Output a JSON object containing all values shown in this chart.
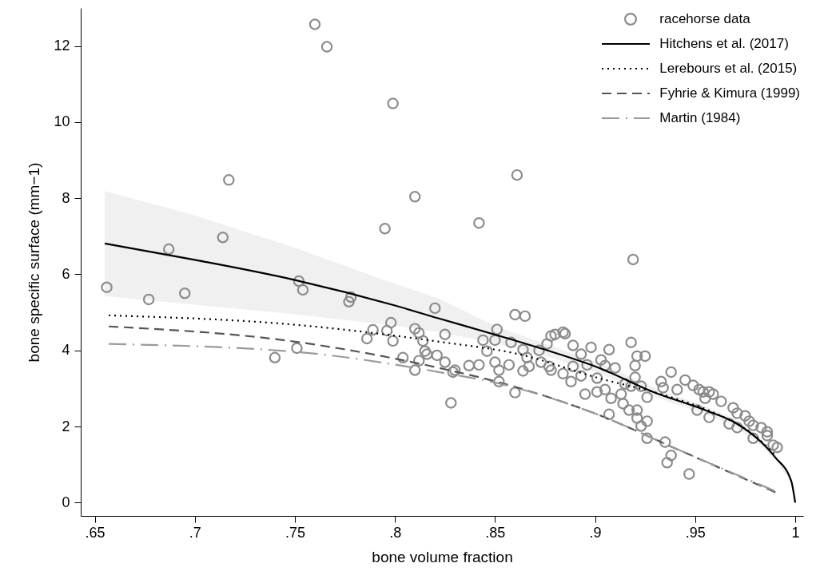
{
  "chart_data": {
    "type": "scatter",
    "xlabel": "bone volume fraction",
    "ylabel": "bone specific surface (mm−1)",
    "xlim": [
      0.643,
      1.004
    ],
    "ylim": [
      -0.35,
      13
    ],
    "xticks": [
      {
        "value": 0.65,
        "label": ".65"
      },
      {
        "value": 0.7,
        "label": ".7"
      },
      {
        "value": 0.75,
        "label": ".75"
      },
      {
        "value": 0.8,
        "label": ".8"
      },
      {
        "value": 0.85,
        "label": ".85"
      },
      {
        "value": 0.9,
        "label": ".9"
      },
      {
        "value": 0.95,
        "label": ".95"
      },
      {
        "value": 1,
        "label": "1"
      }
    ],
    "yticks": [
      0,
      2,
      4,
      6,
      8,
      10,
      12
    ],
    "grid": false,
    "legend": "top right",
    "series": [
      {
        "name": "racehorse data",
        "type": "scatter",
        "marker": "circle",
        "color": "#8c8c8c",
        "x": [
          0.76,
          0.766,
          0.799,
          0.717,
          0.81,
          0.795,
          0.714,
          0.687,
          0.656,
          0.677,
          0.695,
          0.752,
          0.754,
          0.778,
          0.777,
          0.82,
          0.861,
          0.842,
          0.919,
          0.74,
          0.751,
          0.786,
          0.789,
          0.798,
          0.796,
          0.799,
          0.804,
          0.81,
          0.812,
          0.81,
          0.812,
          0.814,
          0.815,
          0.816,
          0.821,
          0.86,
          0.865,
          0.851,
          0.825,
          0.844,
          0.85,
          0.858,
          0.864,
          0.866,
          0.846,
          0.825,
          0.829,
          0.83,
          0.837,
          0.842,
          0.85,
          0.852,
          0.852,
          0.857,
          0.86,
          0.828,
          0.864,
          0.867,
          0.873,
          0.872,
          0.876,
          0.878,
          0.88,
          0.884,
          0.885,
          0.877,
          0.878,
          0.884,
          0.888,
          0.889,
          0.893,
          0.889,
          0.893,
          0.898,
          0.896,
          0.901,
          0.895,
          0.901,
          0.903,
          0.905,
          0.907,
          0.907,
          0.905,
          0.908,
          0.91,
          0.914,
          0.913,
          0.915,
          0.918,
          0.921,
          0.925,
          0.92,
          0.92,
          0.918,
          0.917,
          0.921,
          0.921,
          0.926,
          0.923,
          0.926,
          0.923,
          0.926,
          0.933,
          0.935,
          0.938,
          0.936,
          0.947,
          0.938,
          0.934,
          0.941,
          0.945,
          0.949,
          0.952,
          0.954,
          0.951,
          0.955,
          0.957,
          0.957,
          0.959,
          0.963,
          0.967,
          0.969,
          0.971,
          0.971,
          0.975,
          0.977,
          0.979,
          0.979,
          0.983,
          0.986,
          0.986,
          0.989,
          0.991
        ],
        "values": [
          12.57,
          11.98,
          10.49,
          8.48,
          8.04,
          7.2,
          6.97,
          6.66,
          5.66,
          5.34,
          5.5,
          5.82,
          5.59,
          5.4,
          5.28,
          5.11,
          8.61,
          7.35,
          6.39,
          3.81,
          4.06,
          4.31,
          4.54,
          4.73,
          4.52,
          4.25,
          3.81,
          3.48,
          3.73,
          4.57,
          4.46,
          4.25,
          3.98,
          3.9,
          3.87,
          4.94,
          4.9,
          4.55,
          4.42,
          4.27,
          4.27,
          4.21,
          4.02,
          3.81,
          3.98,
          3.69,
          3.43,
          3.48,
          3.6,
          3.62,
          3.69,
          3.48,
          3.18,
          3.62,
          2.89,
          2.62,
          3.46,
          3.58,
          3.69,
          4.0,
          4.17,
          4.38,
          4.42,
          4.48,
          4.44,
          3.58,
          3.48,
          3.39,
          3.18,
          4.13,
          3.9,
          3.58,
          3.33,
          4.08,
          3.62,
          3.27,
          2.85,
          2.91,
          3.75,
          3.6,
          4.02,
          2.32,
          2.97,
          2.74,
          3.54,
          2.6,
          2.85,
          3.12,
          4.21,
          3.85,
          3.85,
          3.6,
          3.29,
          3.06,
          2.43,
          2.43,
          2.22,
          2.14,
          2.01,
          1.69,
          3.06,
          2.77,
          3.18,
          1.59,
          1.24,
          1.05,
          0.75,
          3.43,
          3.02,
          2.97,
          3.22,
          3.08,
          2.97,
          2.91,
          2.43,
          2.74,
          2.91,
          2.24,
          2.85,
          2.66,
          2.07,
          2.49,
          2.35,
          1.97,
          2.28,
          2.14,
          2.03,
          1.69,
          1.97,
          1.86,
          1.76,
          1.51,
          1.45
        ]
      },
      {
        "name": "Hitchens et al. (2017)",
        "type": "line",
        "line_style": "solid",
        "color": "#000000",
        "x": [
          0.655,
          0.7,
          0.75,
          0.8,
          0.822,
          0.851,
          0.875,
          0.902,
          0.929,
          0.955,
          0.97,
          0.983,
          0.99,
          0.998,
          1.0
        ],
        "values": [
          6.81,
          6.38,
          5.85,
          5.18,
          4.84,
          4.4,
          4.02,
          3.54,
          2.91,
          2.43,
          2.1,
          1.59,
          1.19,
          0.57,
          0
        ],
        "upper": [
          8.19,
          7.55,
          6.7,
          5.75,
          5.36,
          4.62,
          4.18,
          3.68,
          3.03,
          2.53,
          2.2,
          1.69,
          1.27,
          0.62,
          0.02
        ],
        "lower": [
          5.43,
          5.2,
          4.95,
          4.65,
          4.48,
          4.18,
          3.86,
          3.4,
          2.79,
          2.33,
          2.0,
          1.49,
          1.11,
          0.52,
          0
        ]
      },
      {
        "name": "Lerebours et al. (2015)",
        "type": "line",
        "line_style": "dotted",
        "color": "#000000",
        "x": [
          0.657,
          0.751,
          0.822,
          0.862,
          0.902,
          0.938,
          0.96,
          0.98,
          0.99
        ],
        "values": [
          4.92,
          4.67,
          4.23,
          3.9,
          3.27,
          2.77,
          2.35,
          1.75,
          1.25
        ]
      },
      {
        "name": "Fyhrie & Kimura (1999)",
        "type": "line",
        "line_style": "dashed",
        "color": "#555555",
        "x": [
          0.657,
          0.75,
          0.822,
          0.852,
          0.902,
          0.942,
          0.991
        ],
        "values": [
          4.63,
          4.23,
          3.54,
          3.16,
          2.3,
          1.38,
          0.25
        ]
      },
      {
        "name": "Martin (1984)",
        "type": "line",
        "line_style": "dashdot",
        "color": "#9a9a9a",
        "x": [
          0.657,
          0.751,
          0.822,
          0.852,
          0.902,
          0.942,
          0.991
        ],
        "values": [
          4.17,
          3.96,
          3.43,
          3.13,
          2.3,
          1.38,
          0.28
        ]
      }
    ]
  }
}
